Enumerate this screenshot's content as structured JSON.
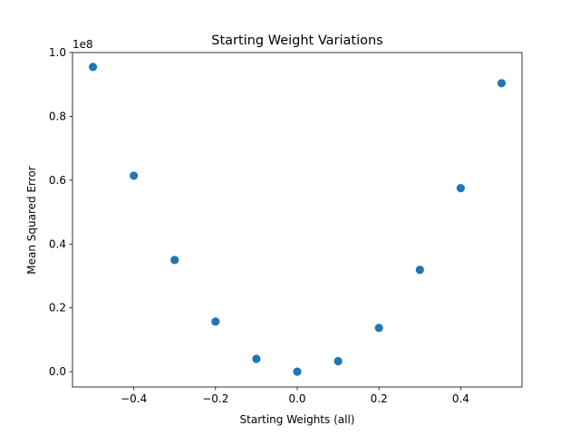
{
  "chart_data": {
    "type": "scatter",
    "title": "Starting Weight Variations",
    "xlabel": "Starting Weights (all)",
    "ylabel": "Mean Squared Error",
    "y_offset_label": "1e8",
    "xlim": [
      -0.55,
      0.55
    ],
    "ylim": [
      -0.048,
      1.0
    ],
    "x_ticks": [
      -0.4,
      -0.2,
      0.0,
      0.2,
      0.4
    ],
    "x_tick_labels": [
      "−0.4",
      "−0.2",
      "0.0",
      "0.2",
      "0.4"
    ],
    "y_ticks": [
      0.0,
      0.2,
      0.4,
      0.6,
      0.8,
      1.0
    ],
    "y_tick_labels": [
      "0.0",
      "0.2",
      "0.4",
      "0.6",
      "0.8",
      "1.0"
    ],
    "grid": false,
    "legend": false,
    "marker_color": "#1f77b4",
    "points": [
      {
        "x": -0.5,
        "y": 0.955
      },
      {
        "x": -0.4,
        "y": 0.614
      },
      {
        "x": -0.3,
        "y": 0.35
      },
      {
        "x": -0.2,
        "y": 0.157
      },
      {
        "x": -0.1,
        "y": 0.04
      },
      {
        "x": 0.0,
        "y": 0.0
      },
      {
        "x": 0.1,
        "y": 0.033
      },
      {
        "x": 0.2,
        "y": 0.137
      },
      {
        "x": 0.3,
        "y": 0.319
      },
      {
        "x": 0.4,
        "y": 0.575
      },
      {
        "x": 0.5,
        "y": 0.904
      }
    ]
  }
}
